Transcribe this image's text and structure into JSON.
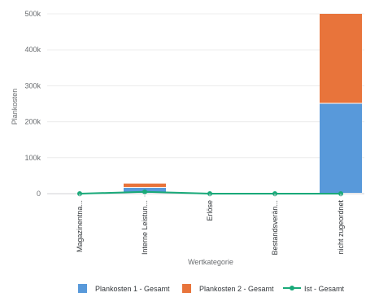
{
  "chart_data": {
    "type": "bar",
    "stacked": true,
    "categories": [
      "Magazinentna...",
      "Interne Leistun...",
      "Erlöse",
      "Bestandsverän...",
      "nicht zugeordnet"
    ],
    "series": [
      {
        "name": "Plankosten 1 - Gesamt",
        "type": "bar",
        "color": "#5899da",
        "values": [
          0,
          16000,
          0,
          0,
          250000
        ]
      },
      {
        "name": "Plankosten 2 - Gesamt",
        "type": "bar",
        "color": "#e8743b",
        "values": [
          0,
          12000,
          0,
          0,
          250000
        ]
      },
      {
        "name": "Ist - Gesamt",
        "type": "line",
        "color": "#19a979",
        "values": [
          0,
          5000,
          0,
          0,
          0
        ]
      }
    ],
    "yticks": [
      "0",
      "100k",
      "200k",
      "300k",
      "400k",
      "500k"
    ],
    "ylim": [
      0,
      500000
    ],
    "xlabel": "Wertkategorie",
    "ylabel": "Plankosten",
    "legend_position": "bottom-right",
    "grid": true
  }
}
